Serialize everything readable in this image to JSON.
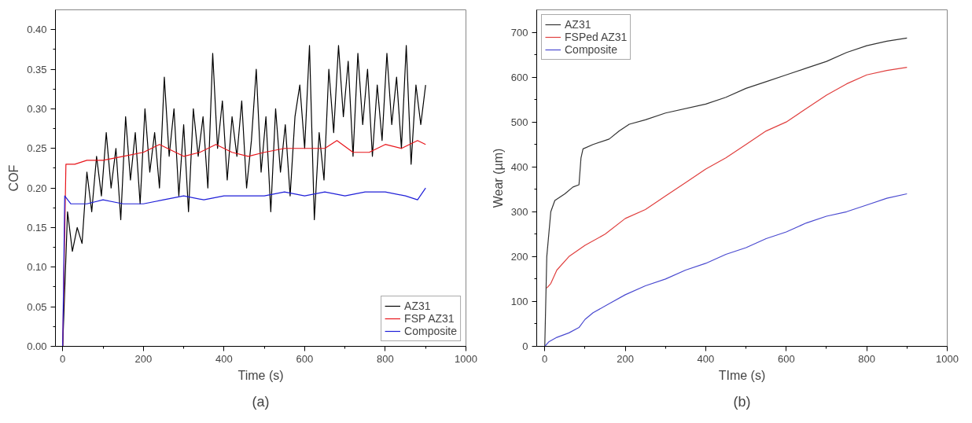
{
  "chart_data": [
    {
      "type": "line",
      "xlabel": "Time (s)",
      "ylabel": "COF",
      "annotations": [
        "(a)"
      ],
      "legend": "bottom right",
      "grid": false,
      "xlim": [
        -18,
        1000
      ],
      "xticks": [
        0,
        200,
        400,
        600,
        800,
        1000
      ],
      "ylim": [
        0,
        0.425
      ],
      "yticks": [
        {
          "value": 0,
          "label": "0.00"
        },
        {
          "value": 0.05,
          "label": "0.05"
        },
        {
          "value": 0.1,
          "label": "0.10"
        },
        {
          "value": 0.15,
          "label": "0.15"
        },
        {
          "value": 0.2,
          "label": "0.20"
        },
        {
          "value": 0.25,
          "label": "0.25"
        },
        {
          "value": 0.3,
          "label": "0.30"
        },
        {
          "value": 0.35,
          "label": "0.35"
        },
        {
          "value": 0.4,
          "label": "0.40"
        }
      ],
      "series": [
        {
          "name": "AZ31",
          "color": "#000000",
          "x": [
            0,
            12,
            24,
            36,
            48,
            60,
            72,
            84,
            96,
            108,
            120,
            132,
            144,
            156,
            168,
            180,
            192,
            204,
            216,
            228,
            240,
            252,
            264,
            276,
            288,
            300,
            312,
            324,
            336,
            348,
            360,
            372,
            384,
            396,
            408,
            420,
            432,
            444,
            456,
            468,
            480,
            492,
            504,
            516,
            528,
            540,
            552,
            564,
            576,
            588,
            600,
            612,
            624,
            636,
            648,
            660,
            672,
            684,
            696,
            708,
            720,
            732,
            744,
            756,
            768,
            780,
            792,
            804,
            816,
            828,
            840,
            852,
            864,
            876,
            888,
            900
          ],
          "values": [
            0.0,
            0.17,
            0.12,
            0.15,
            0.13,
            0.22,
            0.17,
            0.24,
            0.19,
            0.27,
            0.2,
            0.25,
            0.16,
            0.29,
            0.21,
            0.27,
            0.18,
            0.3,
            0.22,
            0.27,
            0.2,
            0.34,
            0.24,
            0.3,
            0.19,
            0.28,
            0.17,
            0.3,
            0.24,
            0.29,
            0.2,
            0.37,
            0.25,
            0.31,
            0.21,
            0.29,
            0.24,
            0.31,
            0.2,
            0.26,
            0.35,
            0.22,
            0.29,
            0.17,
            0.3,
            0.22,
            0.28,
            0.19,
            0.29,
            0.33,
            0.25,
            0.38,
            0.16,
            0.27,
            0.21,
            0.35,
            0.27,
            0.38,
            0.29,
            0.36,
            0.24,
            0.37,
            0.28,
            0.35,
            0.24,
            0.33,
            0.26,
            0.37,
            0.28,
            0.34,
            0.25,
            0.38,
            0.23,
            0.33,
            0.28,
            0.33
          ]
        },
        {
          "name": "FSP AZ31",
          "color": "#e8141a",
          "x": [
            0,
            8,
            30,
            60,
            100,
            150,
            200,
            240,
            260,
            300,
            340,
            380,
            420,
            460,
            500,
            550,
            600,
            650,
            680,
            720,
            760,
            800,
            840,
            880,
            900
          ],
          "values": [
            0,
            0.23,
            0.23,
            0.235,
            0.235,
            0.24,
            0.245,
            0.255,
            0.25,
            0.24,
            0.245,
            0.255,
            0.245,
            0.24,
            0.245,
            0.25,
            0.25,
            0.25,
            0.26,
            0.245,
            0.245,
            0.255,
            0.25,
            0.26,
            0.255
          ]
        },
        {
          "name": "Composite",
          "color": "#1f1fd8",
          "x": [
            0,
            5,
            20,
            60,
            100,
            150,
            200,
            250,
            300,
            350,
            400,
            450,
            500,
            550,
            600,
            650,
            700,
            750,
            800,
            850,
            880,
            900
          ],
          "values": [
            0,
            0.19,
            0.18,
            0.18,
            0.185,
            0.18,
            0.18,
            0.185,
            0.19,
            0.185,
            0.19,
            0.19,
            0.19,
            0.195,
            0.19,
            0.195,
            0.19,
            0.195,
            0.195,
            0.19,
            0.185,
            0.2
          ]
        }
      ]
    },
    {
      "type": "line",
      "xlabel": "TIme (s)",
      "ylabel": "Wear (µm)",
      "annotations": [
        "(b)"
      ],
      "legend": "top left",
      "grid": false,
      "xlim": [
        -20,
        1000
      ],
      "xticks": [
        0,
        200,
        400,
        600,
        800,
        1000
      ],
      "ylim": [
        0,
        750
      ],
      "yticks": [
        0,
        100,
        200,
        300,
        400,
        500,
        600,
        700
      ],
      "series": [
        {
          "name": "AZ31",
          "color": "#333333",
          "x": [
            0,
            5,
            15,
            25,
            50,
            70,
            85,
            90,
            95,
            120,
            160,
            185,
            210,
            250,
            300,
            400,
            450,
            500,
            550,
            600,
            650,
            700,
            750,
            800,
            850,
            900
          ],
          "values": [
            0,
            200,
            300,
            325,
            340,
            355,
            360,
            420,
            440,
            450,
            462,
            480,
            495,
            505,
            520,
            540,
            555,
            575,
            590,
            605,
            620,
            635,
            655,
            670,
            680,
            687
          ]
        },
        {
          "name": "FSPed AZ31",
          "color": "#e0403f",
          "x": [
            5,
            15,
            30,
            60,
            100,
            150,
            200,
            250,
            300,
            350,
            400,
            450,
            500,
            550,
            600,
            650,
            700,
            750,
            800,
            850,
            900
          ],
          "values": [
            130,
            140,
            170,
            200,
            225,
            250,
            285,
            305,
            335,
            365,
            395,
            420,
            450,
            480,
            500,
            530,
            560,
            585,
            605,
            615,
            622
          ]
        },
        {
          "name": "Composite",
          "color": "#4a4ad0",
          "x": [
            0,
            10,
            30,
            60,
            85,
            100,
            120,
            160,
            200,
            250,
            300,
            350,
            400,
            450,
            500,
            550,
            600,
            650,
            700,
            750,
            800,
            850,
            900
          ],
          "values": [
            0,
            10,
            20,
            30,
            42,
            60,
            75,
            95,
            115,
            135,
            150,
            170,
            185,
            205,
            220,
            240,
            255,
            275,
            290,
            300,
            315,
            330,
            340
          ]
        }
      ]
    }
  ]
}
